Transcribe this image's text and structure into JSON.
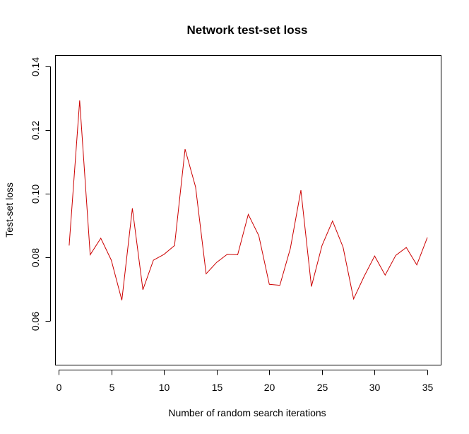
{
  "chart_data": {
    "type": "line",
    "title": "Network test-set loss",
    "xlabel": "Number of random search iterations",
    "ylabel": "Test-set loss",
    "xlim": [
      0,
      36
    ],
    "ylim": [
      0.045,
      0.143
    ],
    "x_ticks": [
      0,
      5,
      10,
      15,
      20,
      25,
      30,
      35
    ],
    "x_tick_labels": [
      "0",
      "5",
      "10",
      "15",
      "20",
      "25",
      "30",
      "35"
    ],
    "y_ticks": [
      0.06,
      0.08,
      0.1,
      0.12,
      0.14
    ],
    "y_tick_labels": [
      "0.06",
      "0.08",
      "0.10",
      "0.12",
      "0.14"
    ],
    "grid": false,
    "series": [
      {
        "color": "#cc0000",
        "x": [
          1,
          2,
          3,
          4,
          5,
          6,
          7,
          8,
          9,
          10,
          11,
          12,
          13,
          14,
          15,
          16,
          17,
          18,
          19,
          20,
          21,
          22,
          23,
          24,
          25,
          26,
          27,
          28,
          29,
          30,
          31,
          32,
          33,
          34,
          35
        ],
        "y": [
          0.0837,
          0.1293,
          0.0808,
          0.086,
          0.0791,
          0.0665,
          0.0954,
          0.0698,
          0.0791,
          0.0809,
          0.0837,
          0.114,
          0.1021,
          0.0748,
          0.0784,
          0.0809,
          0.0808,
          0.0935,
          0.0868,
          0.0715,
          0.0712,
          0.0828,
          0.1011,
          0.0708,
          0.0837,
          0.0914,
          0.0832,
          0.0669,
          0.074,
          0.0804,
          0.0744,
          0.0806,
          0.0831,
          0.0776,
          0.0862
        ]
      }
    ]
  }
}
